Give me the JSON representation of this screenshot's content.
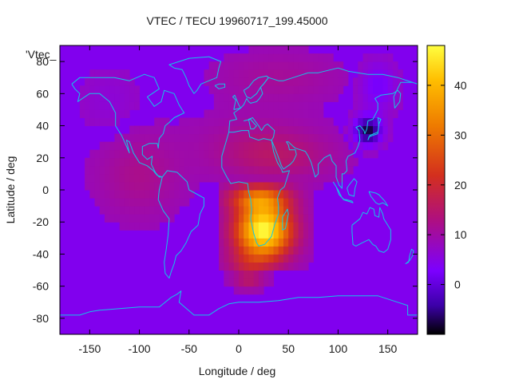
{
  "chart_data": {
    "type": "heatmap",
    "title": "VTEC / TECU 19960717_199.45000",
    "xlabel": "Longitude / deg",
    "ylabel": "Latitude / deg",
    "key_label": "'Vtec_",
    "xlim": [
      -180,
      180
    ],
    "ylim": [
      -90,
      90
    ],
    "x_ticks": [
      "-150",
      "-100",
      "-50",
      "0",
      "50",
      "100",
      "150"
    ],
    "y_ticks": [
      "-80",
      "-60",
      "-40",
      "-20",
      "0",
      "20",
      "40",
      "60",
      "80"
    ],
    "colorbar": {
      "range": [
        -10,
        48
      ],
      "ticks": [
        "0",
        "10",
        "20",
        "30",
        "40"
      ],
      "palette": [
        "#000000",
        "#3c00a8",
        "#7c00ff",
        "#b0107d",
        "#d32f1e",
        "#ee7a00",
        "#ffbe00",
        "#ffff40"
      ]
    },
    "background_value": 8,
    "features": [
      {
        "name": "southern Africa / South Atlantic peak",
        "lon": 25,
        "lat": -25,
        "value": 47
      },
      {
        "name": "Africa equatorial region",
        "lon": 20,
        "lat": -5,
        "value": 35
      },
      {
        "name": "North Africa / Mediterranean band",
        "lon": 0,
        "lat": 22,
        "value": 17
      },
      {
        "name": "Middle East band",
        "lon": 50,
        "lat": 25,
        "value": 15
      },
      {
        "name": "East Asia depletion",
        "lon": 130,
        "lat": 37,
        "value": -8
      }
    ],
    "coastline_color": "#13c6e6",
    "grid": false
  }
}
